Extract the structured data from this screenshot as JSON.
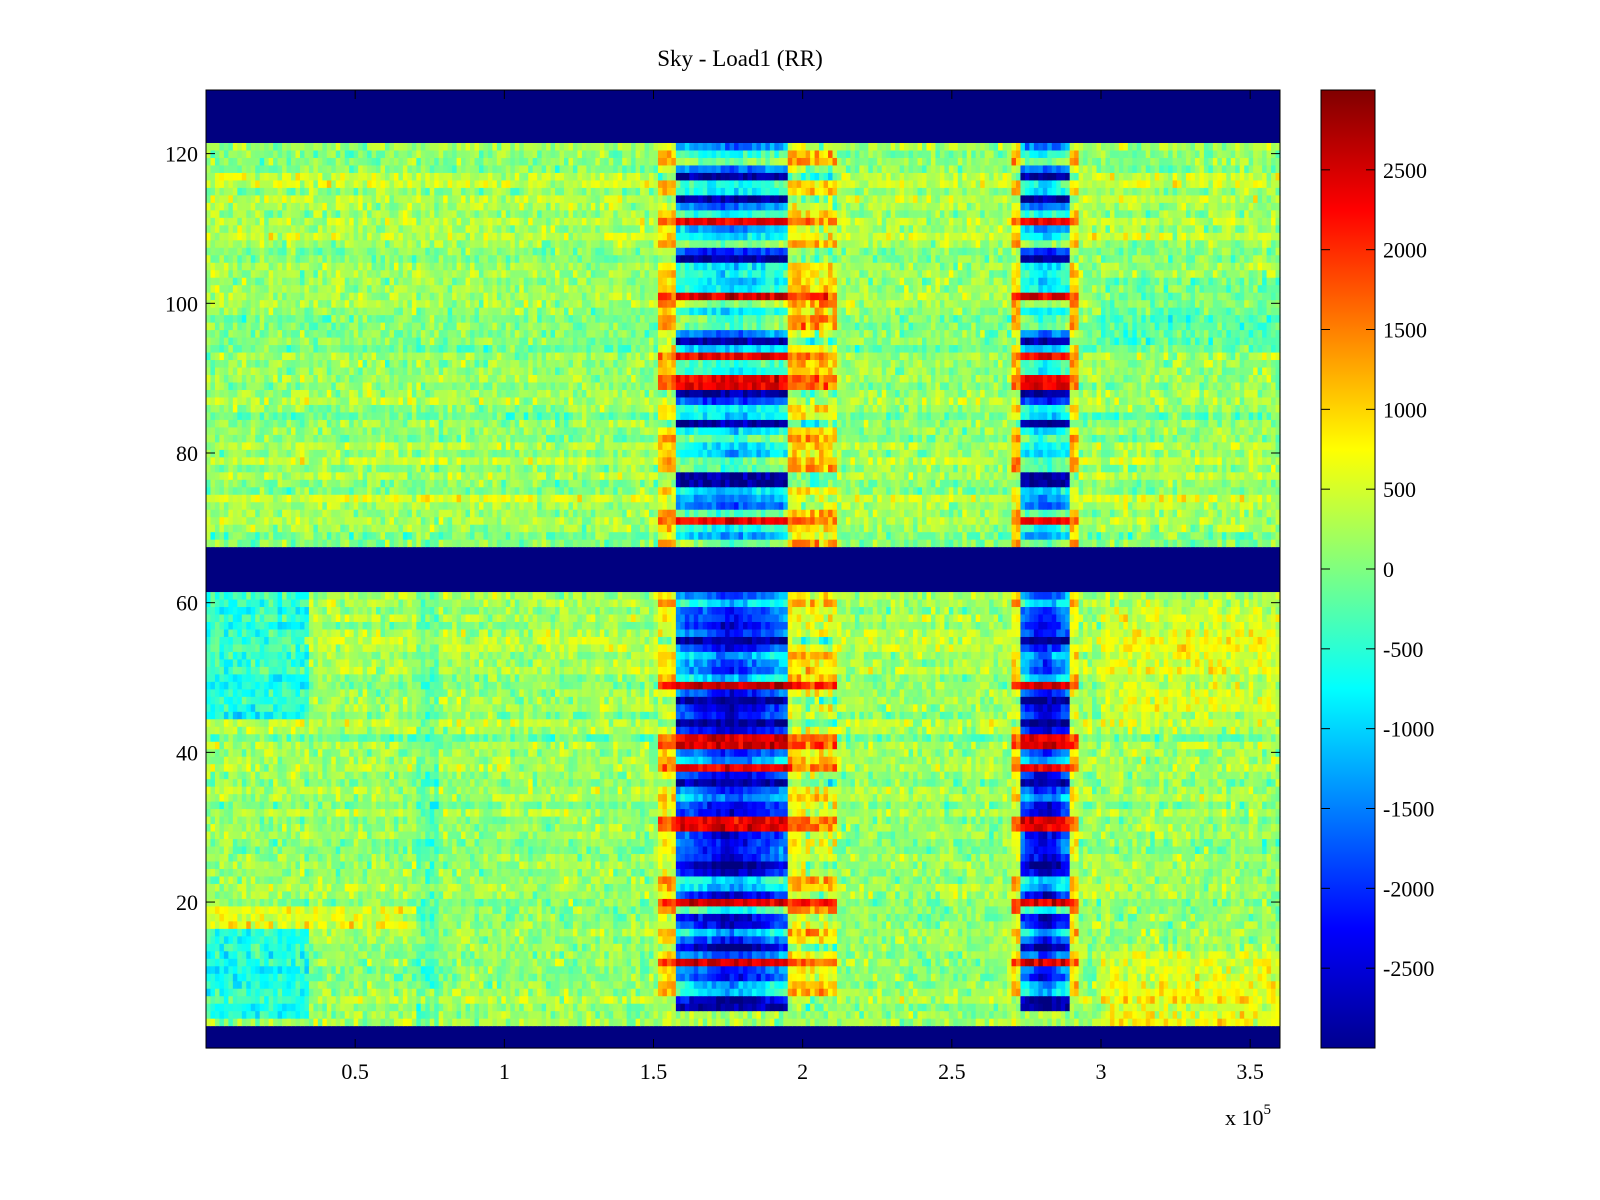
{
  "chart_data": {
    "type": "heatmap",
    "title": "Sky - Load1 (RR)",
    "x_exponent_label": "x 10",
    "x_exponent_power": "5",
    "xlim": [
      0,
      3.6
    ],
    "ylim": [
      0.5,
      128.5
    ],
    "x_ticks": [
      0.5,
      1,
      1.5,
      2,
      2.5,
      3,
      3.5
    ],
    "x_tick_labels": [
      "0.5",
      "1",
      "1.5",
      "2",
      "2.5",
      "3",
      "3.5"
    ],
    "y_ticks": [
      20,
      40,
      60,
      80,
      100,
      120
    ],
    "y_tick_labels": [
      "20",
      "40",
      "60",
      "80",
      "100",
      "120"
    ],
    "colorbar": {
      "colormap": "jet",
      "clim": [
        -3000,
        3000
      ],
      "ticks": [
        2500,
        2000,
        1500,
        1000,
        500,
        0,
        -500,
        -1000,
        -1500,
        -2000,
        -2500
      ],
      "tick_labels": [
        "2500",
        "2000",
        "1500",
        "1000",
        "500",
        "0",
        "-500",
        "-1000",
        "-1500",
        "-2000",
        "-2500"
      ]
    },
    "masked_row_ranges": [
      [
        1,
        3
      ],
      [
        62,
        67
      ],
      [
        122,
        128
      ]
    ],
    "features": {
      "band_1_x_range": [
        1.52,
        2.12
      ],
      "band_2_x_range": [
        2.7,
        2.92
      ],
      "background_value_approx": 0
    }
  }
}
